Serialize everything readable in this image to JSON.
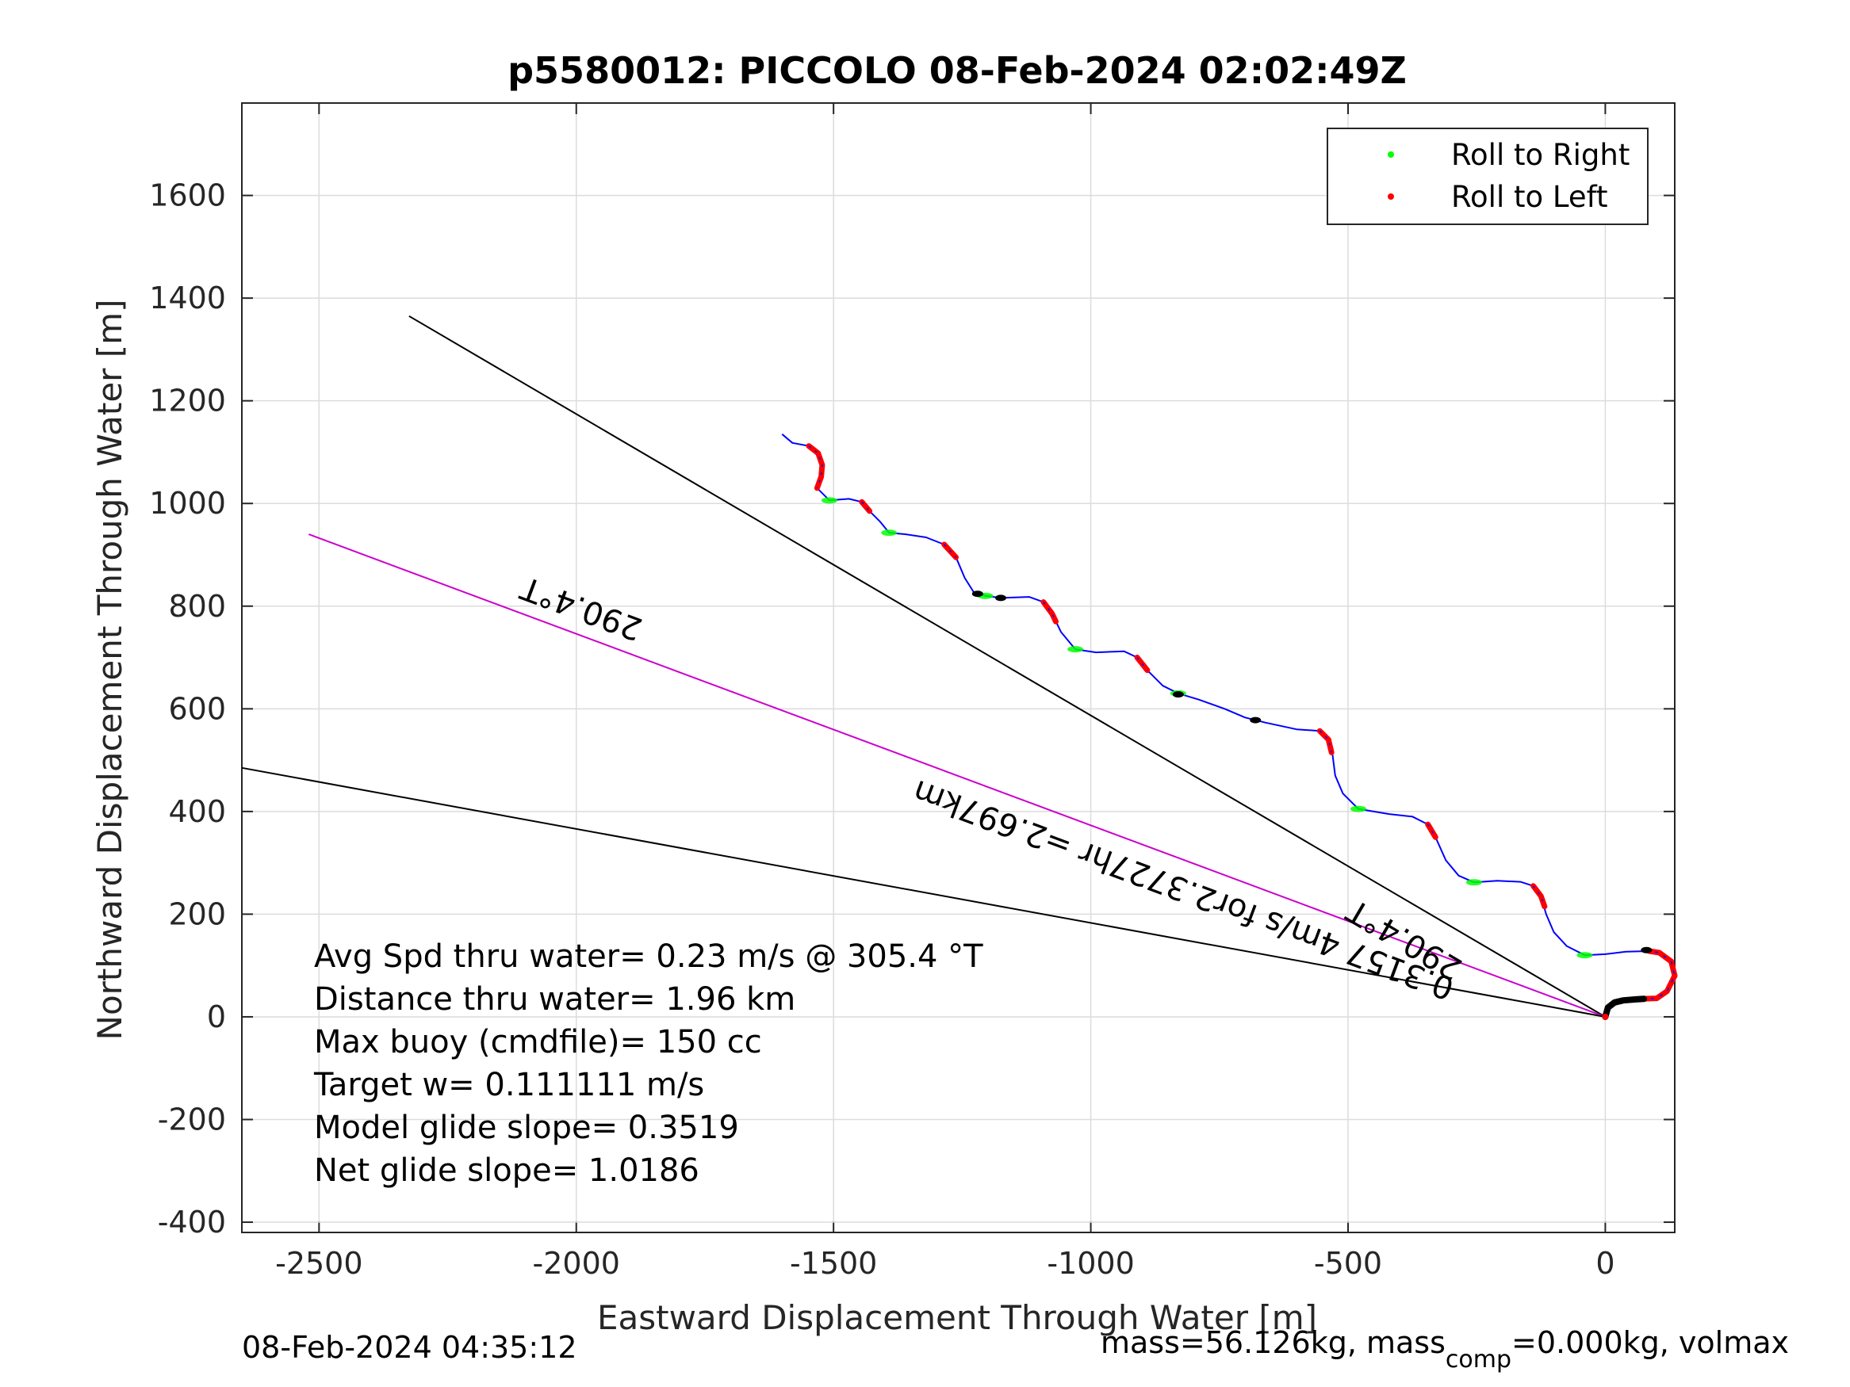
{
  "chart_data": {
    "type": "line",
    "title": "p5580012: PICCOLO 08-Feb-2024 02:02:49Z",
    "xlabel": "Eastward Displacement Through Water [m]",
    "ylabel": "Northward Displacement Through Water [m]",
    "xlim": [
      -2650,
      135
    ],
    "ylim": [
      -420,
      1780
    ],
    "xticks": [
      -2500,
      -2000,
      -1500,
      -1000,
      -500,
      0
    ],
    "yticks": [
      -400,
      -200,
      0,
      200,
      400,
      600,
      800,
      1000,
      1200,
      1400,
      1600
    ],
    "grid": true,
    "legend_position": "top-right",
    "legend": [
      {
        "label": "Roll to Right",
        "color": "#00ff00"
      },
      {
        "label": "Roll to Left",
        "color": "#ff0000"
      }
    ],
    "track": {
      "color": "#0000ff",
      "points": [
        [
          -1600,
          1135
        ],
        [
          -1580,
          1118
        ],
        [
          -1548,
          1112
        ],
        [
          -1528,
          1090
        ],
        [
          -1522,
          1060
        ],
        [
          -1532,
          1030
        ],
        [
          -1508,
          1006
        ],
        [
          -1470,
          1009
        ],
        [
          -1445,
          1003
        ],
        [
          -1430,
          985
        ],
        [
          -1410,
          965
        ],
        [
          -1392,
          943
        ],
        [
          -1360,
          940
        ],
        [
          -1320,
          934
        ],
        [
          -1285,
          920
        ],
        [
          -1262,
          895
        ],
        [
          -1245,
          855
        ],
        [
          -1228,
          828
        ],
        [
          -1205,
          820
        ],
        [
          -1175,
          816
        ],
        [
          -1120,
          818
        ],
        [
          -1092,
          808
        ],
        [
          -1075,
          785
        ],
        [
          -1058,
          750
        ],
        [
          -1030,
          716
        ],
        [
          -990,
          710
        ],
        [
          -935,
          712
        ],
        [
          -910,
          700
        ],
        [
          -890,
          675
        ],
        [
          -860,
          645
        ],
        [
          -830,
          630
        ],
        [
          -790,
          618
        ],
        [
          -740,
          600
        ],
        [
          -700,
          583
        ],
        [
          -660,
          573
        ],
        [
          -600,
          560
        ],
        [
          -555,
          557
        ],
        [
          -535,
          540
        ],
        [
          -530,
          510
        ],
        [
          -525,
          470
        ],
        [
          -510,
          435
        ],
        [
          -480,
          405
        ],
        [
          -420,
          395
        ],
        [
          -375,
          390
        ],
        [
          -345,
          375
        ],
        [
          -330,
          350
        ],
        [
          -310,
          305
        ],
        [
          -285,
          275
        ],
        [
          -255,
          262
        ],
        [
          -210,
          265
        ],
        [
          -165,
          263
        ],
        [
          -140,
          255
        ],
        [
          -125,
          235
        ],
        [
          -115,
          200
        ],
        [
          -100,
          165
        ],
        [
          -75,
          138
        ],
        [
          -40,
          120
        ],
        [
          0,
          122
        ],
        [
          40,
          127
        ],
        [
          85,
          128
        ]
      ]
    },
    "loop": {
      "color": "#ff0000",
      "points": [
        [
          70,
          35
        ],
        [
          100,
          36
        ],
        [
          120,
          50
        ],
        [
          135,
          80
        ],
        [
          128,
          108
        ],
        [
          105,
          125
        ],
        [
          85,
          128
        ]
      ]
    },
    "start_curve": {
      "color": "#000000",
      "points": [
        [
          0,
          0
        ],
        [
          5,
          18
        ],
        [
          18,
          28
        ],
        [
          35,
          32
        ],
        [
          60,
          34
        ],
        [
          75,
          35
        ]
      ]
    },
    "roll_right_points": [
      [
        -1508,
        1006
      ],
      [
        -1392,
        943
      ],
      [
        -1205,
        820
      ],
      [
        -1030,
        716
      ],
      [
        -830,
        630
      ],
      [
        -480,
        405
      ],
      [
        -255,
        262
      ],
      [
        -40,
        120
      ]
    ],
    "roll_left_segments": [
      [
        [
          -1548,
          1112
        ],
        [
          -1530,
          1098
        ],
        [
          -1522,
          1075
        ],
        [
          -1524,
          1052
        ],
        [
          -1532,
          1030
        ]
      ],
      [
        [
          -1445,
          1003
        ],
        [
          -1430,
          985
        ]
      ],
      [
        [
          -1285,
          920
        ],
        [
          -1262,
          895
        ]
      ],
      [
        [
          -1092,
          808
        ],
        [
          -1075,
          785
        ],
        [
          -1068,
          770
        ]
      ],
      [
        [
          -910,
          700
        ],
        [
          -890,
          675
        ]
      ],
      [
        [
          -555,
          557
        ],
        [
          -538,
          540
        ],
        [
          -532,
          515
        ]
      ],
      [
        [
          -345,
          375
        ],
        [
          -330,
          350
        ]
      ],
      [
        [
          -140,
          255
        ],
        [
          -125,
          235
        ],
        [
          -118,
          215
        ]
      ]
    ],
    "black_markers": [
      [
        -1175,
        816
      ],
      [
        -1220,
        824
      ],
      [
        -830,
        628
      ],
      [
        -680,
        578
      ],
      [
        80,
        130
      ]
    ],
    "reference_lines": [
      {
        "color": "#000000",
        "from": [
          0,
          0
        ],
        "to": [
          -2325,
          1365
        ],
        "label": "290.4°T"
      },
      {
        "color": "#cc00cc",
        "from": [
          0,
          0
        ],
        "to": [
          -2520,
          940
        ],
        "label": "290.4°T"
      },
      {
        "color": "#000000",
        "from": [
          0,
          0
        ],
        "to": [
          -2650,
          485
        ],
        "label": ""
      }
    ],
    "annotations": {
      "heading_left": "290.4°T",
      "heading_right": "290.4°T",
      "speed_distance": "0.3157 4m/s for2.3727hr =2.697km"
    }
  },
  "stats": [
    "Avg Spd thru water=  0.23 m/s @ 305.4 °T",
    "Distance thru water=  1.96 km",
    "Max buoy (cmdfile)= 150 cc",
    "Target w= 0.111111 m/s",
    "Model glide slope= 0.3519",
    "Net glide slope= 1.0186"
  ],
  "footer": {
    "timestamp": "08-Feb-2024 04:35:12",
    "mass_prefix": "mass=56.126kg, mass",
    "mass_sub": "comp",
    "mass_suffix": "=0.000kg, volmax"
  }
}
